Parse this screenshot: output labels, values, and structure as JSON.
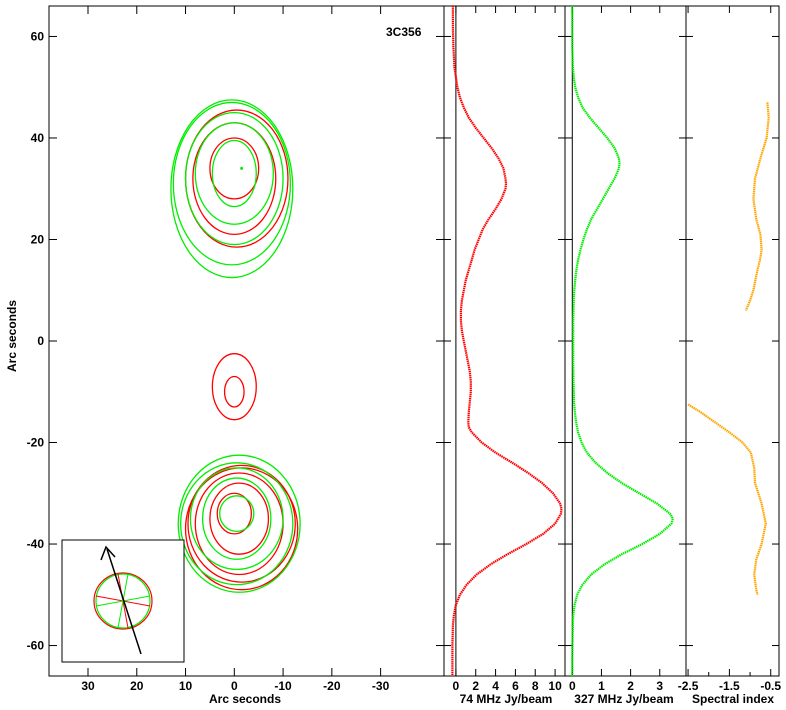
{
  "chart_data": [
    {
      "type": "contour",
      "title": "3C356",
      "xlabel": "Arc seconds",
      "ylabel": "Arc seconds",
      "xlim": [
        38,
        -43
      ],
      "ylim": [
        -66,
        66
      ],
      "xticks": [
        30,
        20,
        10,
        0,
        -10,
        -20,
        -30
      ],
      "yticks": [
        60,
        40,
        20,
        0,
        -20,
        -40,
        -60
      ],
      "xtick_labels": [
        "30",
        "20",
        "10",
        "0",
        "-10",
        "-20",
        "-30"
      ],
      "ytick_labels": [
        "60",
        "40",
        "20",
        "0",
        "-20",
        "-40",
        "-60"
      ],
      "series": [
        {
          "color": "#ff0000",
          "contours": [
            {
              "cx": 0,
              "cy": 34,
              "rx": 5,
              "ry": 6
            },
            {
              "cx": 0,
              "cy": 32,
              "rx": 8.5,
              "ry": 11
            },
            {
              "cx": -0.5,
              "cy": 32,
              "rx": 10.5,
              "ry": 13.5
            },
            {
              "cx": 0,
              "cy": -10,
              "rx": 2,
              "ry": 3
            },
            {
              "cx": 0,
              "cy": -9,
              "rx": 4.5,
              "ry": 6.5
            },
            {
              "cx": 0,
              "cy": -34,
              "rx": 3.5,
              "ry": 4
            },
            {
              "cx": -1,
              "cy": -35,
              "rx": 6,
              "ry": 7
            },
            {
              "cx": -1,
              "cy": -36,
              "rx": 9,
              "ry": 10
            },
            {
              "cx": -1.5,
              "cy": -36,
              "rx": 11,
              "ry": 11.5
            },
            {
              "cx": -1.5,
              "cy": -37,
              "rx": 11.5,
              "ry": 12
            }
          ]
        },
        {
          "color": "#00ee00",
          "contours": [
            {
              "cx": 0,
              "cy": 33,
              "rx": 4.5,
              "ry": 6.5
            },
            {
              "cx": 0,
              "cy": 33,
              "rx": 8,
              "ry": 10
            },
            {
              "cx": 0,
              "cy": 32,
              "rx": 10,
              "ry": 13
            },
            {
              "cx": 0.5,
              "cy": 31,
              "rx": 12,
              "ry": 16
            },
            {
              "cx": 0.5,
              "cy": 30,
              "rx": 12.5,
              "ry": 17.5
            },
            {
              "cx": -0.5,
              "cy": -34,
              "rx": 3.5,
              "ry": 3.5
            },
            {
              "cx": -0.5,
              "cy": -35,
              "rx": 7,
              "ry": 8
            },
            {
              "cx": -0.5,
              "cy": -35,
              "rx": 9.5,
              "ry": 10
            },
            {
              "cx": -0.5,
              "cy": -36,
              "rx": 11.5,
              "ry": 12
            },
            {
              "cx": -1,
              "cy": -36,
              "rx": 12.5,
              "ry": 13.5
            }
          ]
        }
      ],
      "inset": {
        "shows": "beam ellipses and arrow"
      }
    },
    {
      "type": "line",
      "xlabel": "74 MHz Jy/beam",
      "xticks": [
        0,
        2,
        4,
        6,
        8,
        10
      ],
      "xtick_labels": [
        "0",
        "2",
        "4",
        "6",
        "8",
        "10"
      ],
      "xlim": [
        -1.2,
        11
      ],
      "color": "#ff0000",
      "y": [
        66,
        62,
        58,
        54,
        52,
        50,
        48,
        46,
        44,
        42,
        40,
        38,
        36,
        34,
        32,
        31,
        30,
        28,
        26,
        24,
        22,
        20,
        18,
        16,
        14,
        12,
        10,
        8,
        6,
        4,
        2,
        0,
        -2,
        -4,
        -6,
        -8,
        -10,
        -12,
        -14,
        -16,
        -17,
        -18,
        -20,
        -22,
        -24,
        -26,
        -28,
        -30,
        -32,
        -33,
        -34,
        -36,
        -38,
        -40,
        -42,
        -44,
        -46,
        -48,
        -50,
        -52,
        -54,
        -56,
        -60,
        -66
      ],
      "x": [
        -0.3,
        -0.3,
        -0.25,
        -0.15,
        0,
        0.15,
        0.4,
        0.8,
        1.3,
        2.0,
        2.8,
        3.6,
        4.3,
        4.8,
        5.0,
        5.05,
        5.0,
        4.6,
        4.0,
        3.3,
        2.7,
        2.3,
        1.9,
        1.6,
        1.3,
        1.0,
        0.8,
        0.6,
        0.5,
        0.5,
        0.6,
        0.8,
        1.0,
        1.2,
        1.4,
        1.5,
        1.5,
        1.4,
        1.3,
        1.25,
        1.3,
        1.6,
        2.6,
        4.0,
        5.7,
        7.3,
        8.7,
        9.8,
        10.5,
        10.65,
        10.6,
        10.0,
        8.8,
        7.1,
        5.2,
        3.5,
        2.1,
        1.1,
        0.4,
        0.0,
        -0.2,
        -0.3,
        -0.35,
        -0.35
      ]
    },
    {
      "type": "line",
      "xlabel": "327 MHz Jy/beam",
      "xticks": [
        0,
        1,
        2,
        3
      ],
      "xtick_labels": [
        "0",
        "1",
        "2",
        "3"
      ],
      "xlim": [
        -0.25,
        3.9
      ],
      "color": "#00ee00",
      "y": [
        66,
        62,
        58,
        54,
        52,
        50,
        48,
        46,
        44,
        42,
        40,
        38,
        36,
        35,
        34,
        32,
        30,
        28,
        26,
        24,
        22,
        20,
        18,
        16,
        14,
        12,
        10,
        8,
        6,
        4,
        2,
        0,
        -4,
        -8,
        -12,
        -14,
        -16,
        -18,
        -20,
        -22,
        -24,
        -26,
        -28,
        -30,
        -32,
        -34,
        -35,
        -36,
        -38,
        -40,
        -42,
        -44,
        -46,
        -48,
        -50,
        -52,
        -54,
        -58,
        -62,
        -66
      ],
      "x": [
        0.0,
        0.0,
        0.0,
        0.02,
        0.05,
        0.1,
        0.2,
        0.35,
        0.6,
        0.9,
        1.2,
        1.45,
        1.6,
        1.62,
        1.6,
        1.45,
        1.25,
        1.05,
        0.85,
        0.65,
        0.5,
        0.38,
        0.28,
        0.2,
        0.14,
        0.1,
        0.07,
        0.05,
        0.04,
        0.03,
        0.03,
        0.03,
        0.03,
        0.04,
        0.06,
        0.09,
        0.13,
        0.2,
        0.32,
        0.5,
        0.8,
        1.2,
        1.7,
        2.3,
        2.9,
        3.35,
        3.45,
        3.4,
        3.0,
        2.4,
        1.7,
        1.1,
        0.65,
        0.35,
        0.17,
        0.08,
        0.03,
        0.01,
        0.0,
        0.0
      ]
    },
    {
      "type": "line",
      "xlabel": "Spectral index",
      "xticks": [
        -2.5,
        -1.5,
        -0.5
      ],
      "xtick_labels": [
        "-2.5",
        "-1.5",
        "-0.5"
      ],
      "minor_xticks": [
        -2.0,
        -1.0
      ],
      "xlim": [
        -2.55,
        -0.3
      ],
      "color": "#ffa500",
      "segments": [
        {
          "y": [
            47,
            44,
            40,
            36,
            32,
            28,
            24,
            21,
            18,
            16,
            14,
            12,
            10,
            8,
            6
          ],
          "x": [
            -0.58,
            -0.55,
            -0.6,
            -0.75,
            -0.88,
            -0.92,
            -0.85,
            -0.75,
            -0.72,
            -0.76,
            -0.82,
            -0.87,
            -0.92,
            -1.0,
            -1.1
          ]
        },
        {
          "y": [
            -12.5,
            -14,
            -16,
            -18,
            -20,
            -22,
            -25,
            -28,
            -32,
            -36,
            -40,
            -43,
            -46,
            -49,
            -50
          ],
          "x": [
            -2.5,
            -2.2,
            -1.85,
            -1.5,
            -1.18,
            -0.98,
            -0.9,
            -0.88,
            -0.72,
            -0.62,
            -0.72,
            -0.85,
            -0.9,
            -0.85,
            -0.82
          ]
        }
      ]
    }
  ]
}
